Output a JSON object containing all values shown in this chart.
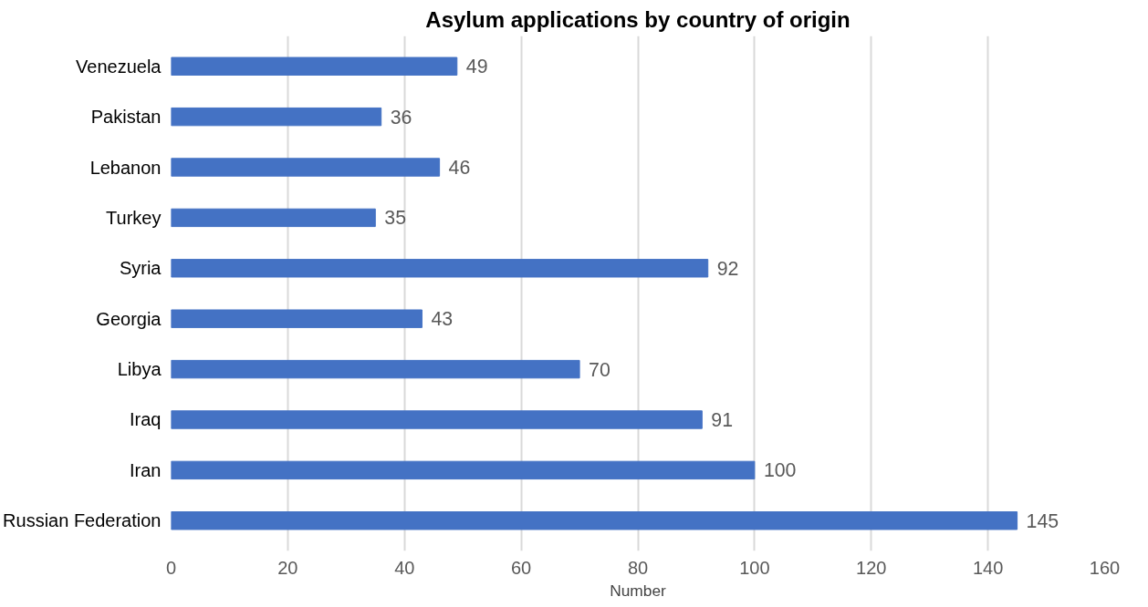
{
  "chart_data": {
    "type": "bar",
    "orientation": "horizontal",
    "title": "Asylum applications by country of origin",
    "xlabel": "Number",
    "categories": [
      "Venezuela",
      "Pakistan",
      "Lebanon",
      "Turkey",
      "Syria",
      "Georgia",
      "Libya",
      "Iraq",
      "Iran",
      "Russian Federation"
    ],
    "values": [
      49,
      36,
      46,
      35,
      92,
      43,
      70,
      91,
      100,
      145
    ],
    "color": "#4472c4",
    "xlim": [
      0,
      160
    ],
    "xticks": [
      0,
      20,
      40,
      60,
      80,
      100,
      120,
      140,
      160
    ],
    "grid": "x",
    "data_labels": true
  }
}
